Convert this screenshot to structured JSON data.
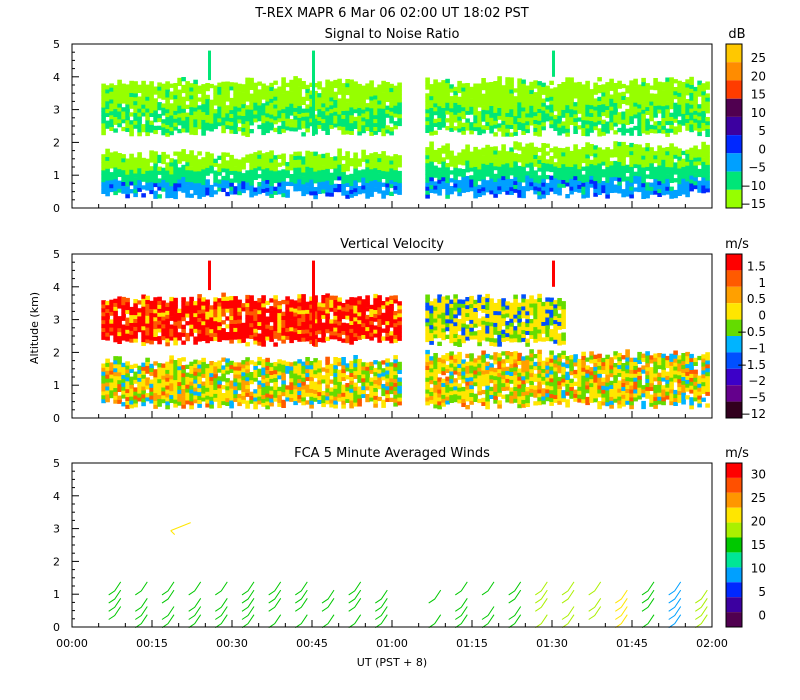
{
  "figure_title": "T-REX   MAPR   6 Mar 06   02:00 UT   18:02   PST",
  "x_axis": {
    "label": "UT  (PST + 8)",
    "ticks": [
      "00:00",
      "00:15",
      "00:30",
      "00:45",
      "01:00",
      "01:15",
      "01:30",
      "01:45",
      "02:00"
    ]
  },
  "y_axis_label": "Altitude (km)",
  "chart_data": [
    {
      "type": "heatmap",
      "title": "Signal to Noise Ratio",
      "units": "dB",
      "xlim_minutes": [
        0,
        120
      ],
      "ylim": [
        0,
        5
      ],
      "yticks": [
        0,
        1,
        2,
        3,
        4,
        5
      ],
      "colorbar": {
        "labels": [
          "25",
          "20",
          "15",
          "10",
          "5",
          "0",
          "−5",
          "−10",
          "−15"
        ],
        "colors": [
          "#ffc800",
          "#ff8c00",
          "#ff3c00",
          "#500050",
          "#3c00a0",
          "#0028ff",
          "#00a0ff",
          "#00e678",
          "#96ff00"
        ]
      },
      "data_gap_minutes": [
        61.2,
        66.0
      ],
      "layers": [
        {
          "name": "lower",
          "alt_km": [
            0.4,
            1.6
          ],
          "range_db": "-15 to 10"
        },
        {
          "name": "upper",
          "alt_km": [
            2.3,
            3.8
          ],
          "range_db": "-15 to -5"
        }
      ]
    },
    {
      "type": "heatmap",
      "title": "Vertical Velocity",
      "units": "m/s",
      "xlim_minutes": [
        0,
        120
      ],
      "ylim": [
        0,
        5
      ],
      "yticks": [
        0,
        1,
        2,
        3,
        4,
        5
      ],
      "colorbar": {
        "labels": [
          "1.5",
          "1",
          "0.5",
          "0",
          "−0.5",
          "−1",
          "−1.5",
          "−2",
          "−5",
          "−12"
        ],
        "colors": [
          "#ff0000",
          "#ff5a00",
          "#ffa000",
          "#ffe600",
          "#64dc00",
          "#00b4ff",
          "#0050ff",
          "#3c00c8",
          "#64008c",
          "#32001e"
        ]
      },
      "data_gap_minutes": [
        61.2,
        66.0
      ],
      "layers": [
        {
          "name": "lower",
          "alt_km": [
            0.4,
            1.7
          ],
          "range_ms": "-1 to 1"
        },
        {
          "name": "upper",
          "alt_km": [
            2.3,
            3.6
          ],
          "range_ms": "0 to 1.5"
        }
      ]
    },
    {
      "type": "scatter",
      "title": "FCA 5 Minute Averaged Winds",
      "units": "m/s",
      "xlim_minutes": [
        0,
        120
      ],
      "ylim": [
        0,
        5
      ],
      "yticks": [
        0,
        1,
        2,
        3,
        4,
        5
      ],
      "colorbar": {
        "labels": [
          "30",
          "25",
          "20",
          "15",
          "10",
          "5",
          "0"
        ],
        "colors": [
          "#ff0000",
          "#ff5000",
          "#ff9600",
          "#ffe600",
          "#aaf000",
          "#00c800",
          "#00e696",
          "#00a0ff",
          "#0028ff",
          "#3c00a0",
          "#500050"
        ]
      },
      "barb_times_minutes": [
        8,
        13,
        18,
        23,
        28,
        33,
        38,
        43,
        48,
        53,
        58,
        68,
        73,
        78,
        83,
        88,
        93,
        98,
        103,
        108,
        113,
        118
      ],
      "barb_speeds_ms": [
        14,
        14,
        14,
        13,
        14,
        14,
        14,
        14,
        14,
        14,
        13,
        14,
        14,
        14,
        14,
        15,
        16,
        17,
        20,
        12,
        8,
        15
      ],
      "upper_barb": {
        "time_minutes": 20,
        "alt_km": 3.0,
        "speed_ms": 20
      }
    }
  ]
}
